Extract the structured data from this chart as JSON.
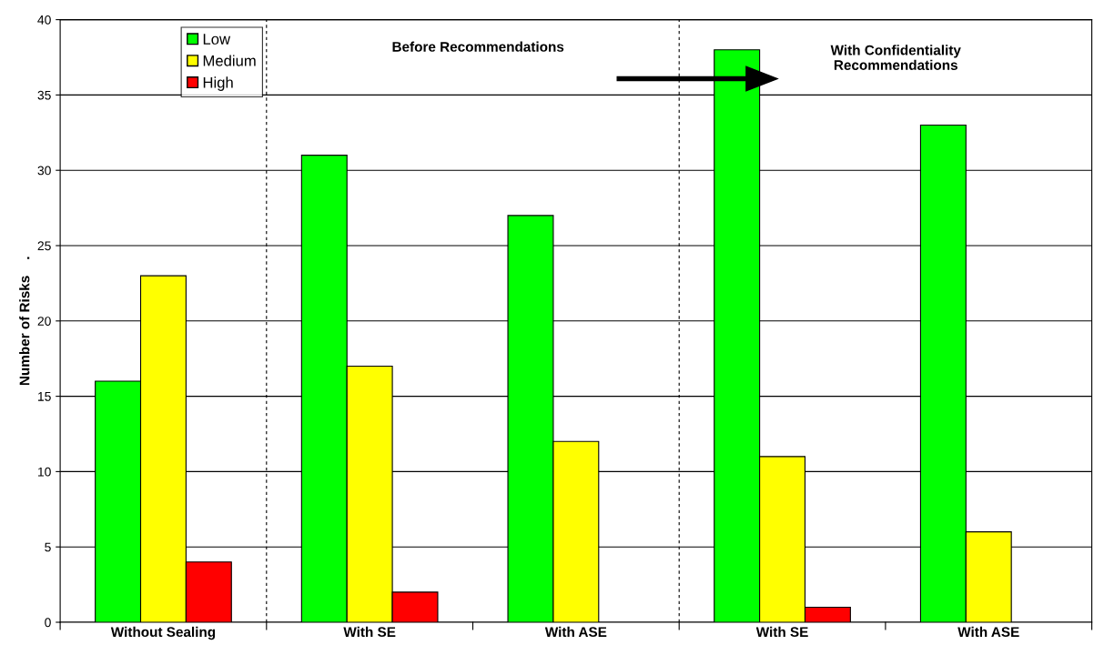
{
  "chart_data": {
    "type": "bar",
    "ylabel": "Number of Risks    .",
    "categories": [
      "Without Sealing",
      "With SE",
      "With ASE",
      "With SE",
      "With ASE"
    ],
    "series": [
      {
        "name": "Low",
        "color": "#00ff00",
        "values": [
          16,
          31,
          27,
          38,
          33
        ]
      },
      {
        "name": "Medium",
        "color": "#ffff00",
        "values": [
          23,
          17,
          12,
          11,
          6
        ]
      },
      {
        "name": "High",
        "color": "#ff0000",
        "values": [
          4,
          2,
          null,
          1,
          null
        ]
      }
    ],
    "ylim": [
      0,
      40
    ],
    "yticks": [
      0,
      5,
      10,
      15,
      20,
      25,
      30,
      35,
      40
    ],
    "grid": "y",
    "legend": "top left",
    "annotations": [
      "Before Recommendations",
      "With Confidentiality\nRecommendations"
    ]
  }
}
